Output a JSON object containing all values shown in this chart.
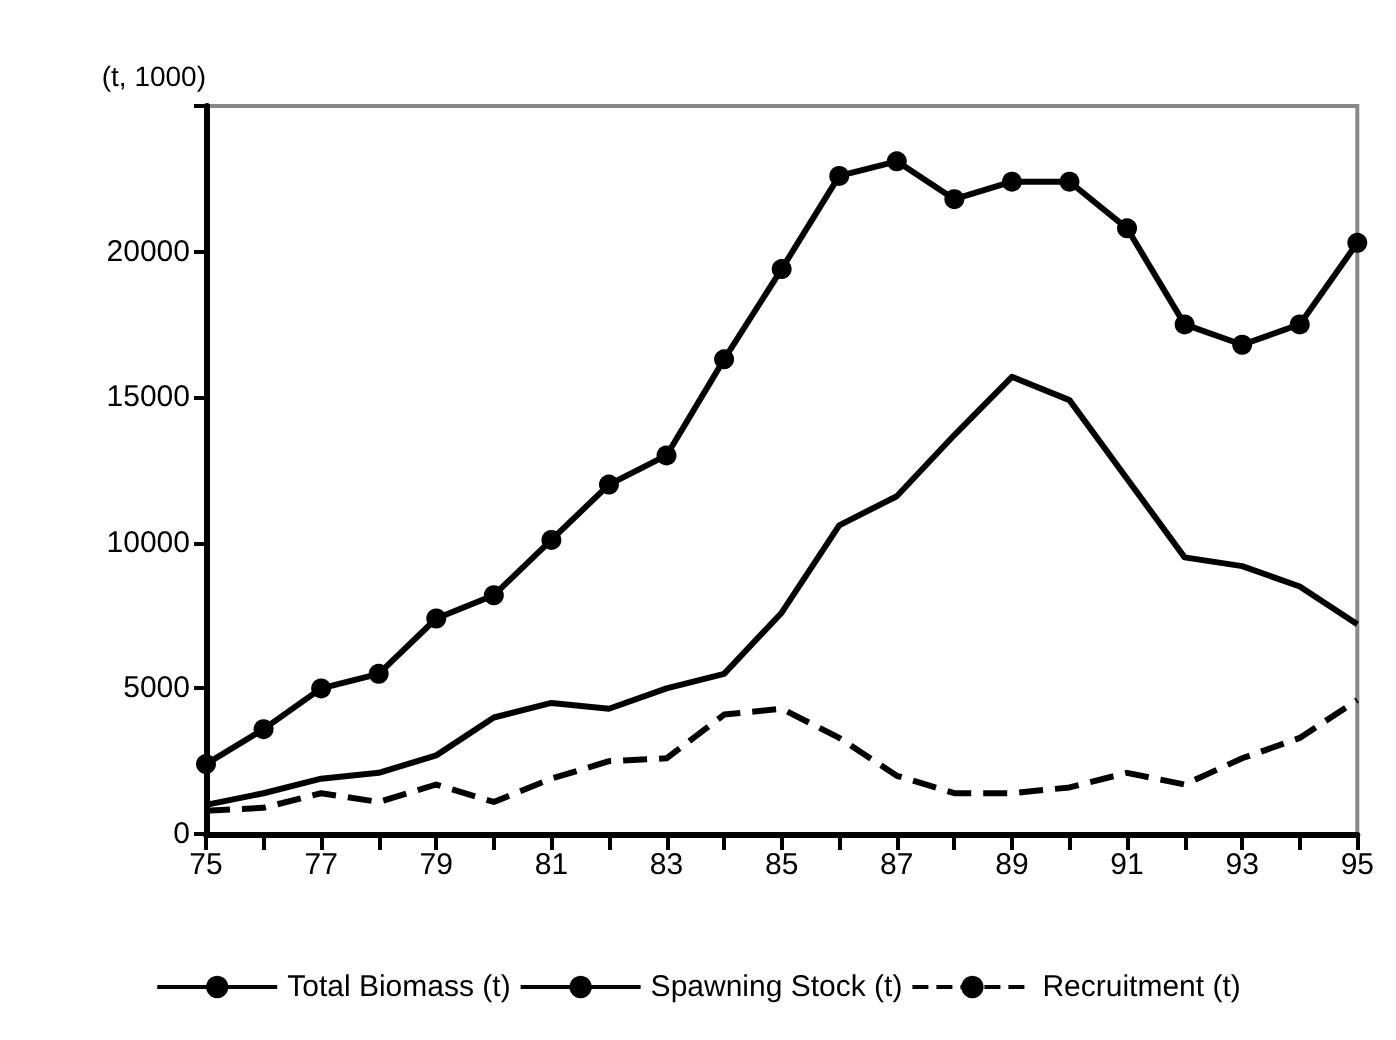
{
  "chart_data": {
    "type": "line",
    "ylabel": "(t, 1000)",
    "categories": [
      "75",
      null,
      "77",
      null,
      "79",
      null,
      "81",
      null,
      "83",
      null,
      "85",
      null,
      "87",
      null,
      "89",
      null,
      "91",
      null,
      "93",
      null,
      "95"
    ],
    "series": [
      {
        "name": "Total Biomass (t)",
        "color": "#000000",
        "marker": "circle",
        "line_style": "solid",
        "values": [
          2400,
          3600,
          5000,
          5500,
          7400,
          8200,
          10100,
          12000,
          13000,
          16300,
          19400,
          22600,
          23100,
          21800,
          22400,
          22400,
          20800,
          17500,
          16800,
          17500,
          20300
        ]
      },
      {
        "name": "Spawning Stock (t)",
        "color": "#000000",
        "marker": "none",
        "line_style": "solid",
        "values": [
          1000,
          1400,
          1900,
          2100,
          2700,
          4000,
          4500,
          4300,
          5000,
          5500,
          7600,
          10600,
          11600,
          13700,
          15700,
          14900,
          12200,
          9500,
          9200,
          8500,
          7200
        ]
      },
      {
        "name": "Recruitment (t)",
        "color": "#000000",
        "marker": "none",
        "line_style": "dashed",
        "values": [
          800,
          900,
          1400,
          1100,
          1700,
          1100,
          1900,
          2500,
          2600,
          4100,
          4300,
          3300,
          2000,
          1400,
          1400,
          1600,
          2100,
          1700,
          2600,
          3300,
          4600
        ]
      }
    ],
    "ylim": [
      0,
      25000
    ],
    "yticks": [
      0,
      5000,
      10000,
      15000,
      20000,
      {
        "value": 25000,
        "label": null
      }
    ],
    "grid": false,
    "legend": "bottom"
  }
}
